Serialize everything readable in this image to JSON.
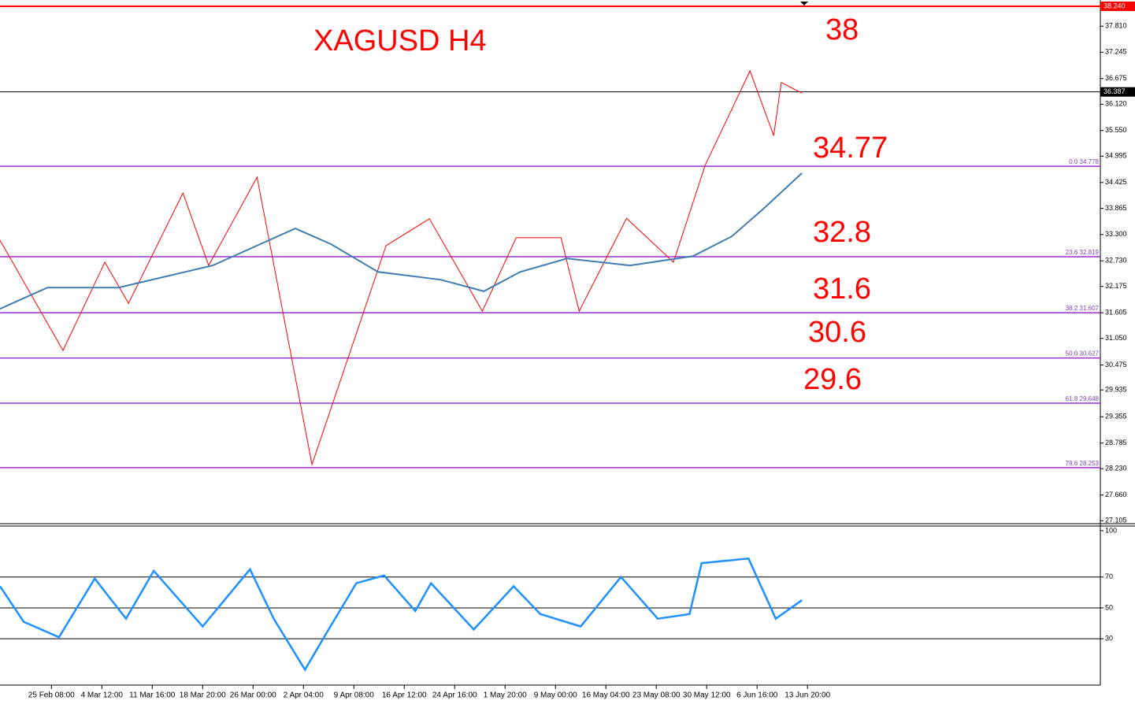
{
  "chart_data": [
    {
      "type": "line",
      "title": "XAGUSD H4",
      "annotations": [
        "38",
        "34.77",
        "32.8",
        "31.6",
        "30.6",
        "29.6"
      ],
      "xlim": [
        -1.02,
        20.81
      ],
      "xticks": [
        {
          "value": 0,
          "label": "25 Feb 08:00"
        },
        {
          "value": 1,
          "label": "4 Mar 12:00"
        },
        {
          "value": 2,
          "label": "11 Mar 16:00"
        },
        {
          "value": 3,
          "label": "18 Mar 20:00"
        },
        {
          "value": 4,
          "label": "26 Mar 00:00"
        },
        {
          "value": 5,
          "label": "2 Apr 04:00"
        },
        {
          "value": 6,
          "label": "9 Apr 08:00"
        },
        {
          "value": 7,
          "label": "16 Apr 12:00"
        },
        {
          "value": 8,
          "label": "24 Apr 16:00"
        },
        {
          "value": 9,
          "label": "1 May 20:00"
        },
        {
          "value": 10,
          "label": "9 May 00:00"
        },
        {
          "value": 11,
          "label": "16 May 04:00"
        },
        {
          "value": 12,
          "label": "23 May 08:00"
        },
        {
          "value": 13,
          "label": "30 May 12:00"
        },
        {
          "value": 14,
          "label": "6 Jun 16:00"
        },
        {
          "value": 15,
          "label": "13 Jun 20:00"
        }
      ],
      "ylim": [
        27.04,
        38.376
      ],
      "yticks": [
        {
          "value": 37.81,
          "label": "37.810"
        },
        {
          "value": 37.245,
          "label": "37.245"
        },
        {
          "value": 36.675,
          "label": "36.675"
        },
        {
          "value": 36.12,
          "label": "36.120"
        },
        {
          "value": 35.55,
          "label": "35.550"
        },
        {
          "value": 34.995,
          "label": "34.995"
        },
        {
          "value": 34.425,
          "label": "34.425"
        },
        {
          "value": 33.865,
          "label": "33.865"
        },
        {
          "value": 33.3,
          "label": "33.300"
        },
        {
          "value": 32.73,
          "label": "32.730"
        },
        {
          "value": 32.175,
          "label": "32.175"
        },
        {
          "value": 31.605,
          "label": "31.605"
        },
        {
          "value": 31.05,
          "label": "31.050"
        },
        {
          "value": 30.475,
          "label": "30.475"
        },
        {
          "value": 29.935,
          "label": "29.935"
        },
        {
          "value": 29.355,
          "label": "29.355"
        },
        {
          "value": 28.785,
          "label": "28.785"
        },
        {
          "value": 28.23,
          "label": "28.230"
        },
        {
          "value": 27.66,
          "label": "27.660"
        },
        {
          "value": 27.105,
          "label": "27.105"
        }
      ],
      "levels": [
        {
          "value": 38.24,
          "label": "38.240",
          "color": "#ff0000"
        },
        {
          "value": 36.387,
          "label": "36.387",
          "color": "#000000"
        }
      ],
      "fib_levels": [
        {
          "value": 34.778,
          "label": "0.0 34.778"
        },
        {
          "value": 32.819,
          "label": "23.6 32.819"
        },
        {
          "value": 31.607,
          "label": "38.2 31.607"
        },
        {
          "value": 30.627,
          "label": "50.0 30.627"
        },
        {
          "value": 29.648,
          "label": "61.8 29.648"
        },
        {
          "value": 28.253,
          "label": "78.6 28.253"
        }
      ],
      "fib_color": "#9932cc",
      "series": [
        {
          "color": "#ff0000",
          "x": [
            -1.02,
            0.23,
            1.06,
            1.53,
            2.61,
            3.12,
            4.08,
            5.17,
            6.64,
            7.5,
            8.55,
            9.22,
            10.11,
            10.47,
            11.41,
            12.34,
            12.97,
            13.86,
            14.33,
            14.48,
            14.89
          ],
          "values": [
            33.175,
            30.79,
            32.7,
            31.81,
            34.2,
            32.63,
            34.54,
            28.32,
            33.06,
            33.64,
            31.64,
            33.23,
            33.23,
            31.64,
            33.65,
            32.7,
            34.8,
            36.84,
            35.44,
            36.59,
            36.36
          ]
        },
        {
          "color": "#3e7cb1",
          "x": [
            -1.02,
            -0.08,
            1.33,
            3.2,
            4.14,
            4.84,
            5.55,
            6.48,
            7.73,
            8.58,
            9.3,
            10.23,
            11.48,
            12.73,
            13.5,
            14.13,
            14.89
          ],
          "values": [
            31.69,
            32.15,
            32.15,
            32.63,
            33.09,
            33.43,
            33.09,
            32.49,
            32.32,
            32.07,
            32.49,
            32.78,
            32.63,
            32.83,
            33.26,
            33.86,
            34.63
          ]
        }
      ]
    },
    {
      "type": "line",
      "ylim": [
        0,
        103
      ],
      "yticks": [
        100,
        70,
        50,
        30
      ],
      "grid_levels": [
        70,
        50,
        30
      ],
      "series": [
        {
          "color": "#1e90ff",
          "x": [
            -1.02,
            -0.55,
            0.15,
            0.86,
            1.48,
            2.03,
            3,
            3.94,
            4.41,
            5.03,
            5.5,
            6.05,
            6.6,
            7.22,
            7.53,
            8.38,
            9.17,
            9.7,
            10.5,
            11.3,
            12.03,
            12.66,
            12.9,
            13.83,
            14.37,
            14.89
          ],
          "values": [
            64,
            41,
            31,
            69,
            43,
            74,
            38,
            75,
            43,
            10,
            36,
            66,
            71,
            48,
            66,
            36,
            64,
            46,
            38,
            70,
            43,
            46,
            79,
            82,
            43,
            55
          ]
        }
      ]
    }
  ]
}
